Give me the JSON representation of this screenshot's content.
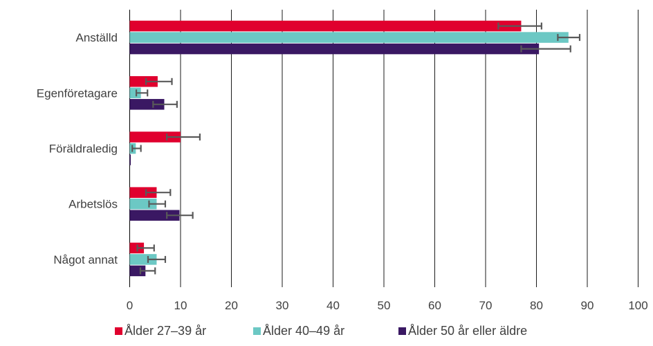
{
  "chart_data": {
    "type": "bar",
    "orientation": "horizontal",
    "categories": [
      "Anställd",
      "Egenföretagare",
      "Föräldraledig",
      "Arbetslös",
      "Något annat"
    ],
    "series": [
      {
        "name": "Ålder 27–39 år",
        "color": "#E0002E",
        "values": [
          77,
          5.5,
          10,
          5.3,
          2.8
        ],
        "error_low": [
          72.5,
          3.2,
          7.3,
          3.2,
          1.5
        ],
        "error_high": [
          81,
          8.3,
          13.8,
          8,
          4.8
        ]
      },
      {
        "name": "Ålder 40–49 år",
        "color": "#6CC8C4",
        "values": [
          86.3,
          2.2,
          1.2,
          5.3,
          5.3
        ],
        "error_low": [
          84.2,
          1.3,
          0.5,
          3.8,
          3.6
        ],
        "error_high": [
          88.5,
          3.5,
          2.2,
          7,
          7
        ]
      },
      {
        "name": "Ålder 50 år eller äldre",
        "color": "#3A1863",
        "values": [
          80.5,
          6.8,
          0.2,
          9.8,
          3.1
        ],
        "error_low": [
          77,
          4.6,
          0.2,
          7.3,
          2.1
        ],
        "error_high": [
          86.7,
          9.3,
          0.2,
          12.4,
          5
        ]
      }
    ],
    "xlim": [
      0,
      100
    ],
    "xticks": [
      0,
      10,
      20,
      30,
      40,
      50,
      60,
      70,
      80,
      90,
      100
    ],
    "grid": "vertical",
    "legend_position": "bottom",
    "error_bar_color": "#595959",
    "title": "",
    "xlabel": "",
    "ylabel": ""
  }
}
